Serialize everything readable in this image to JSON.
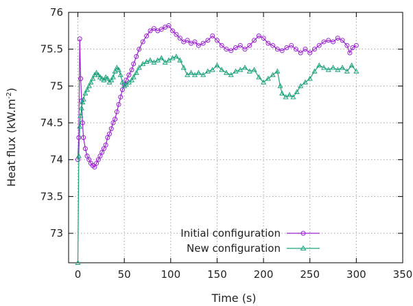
{
  "chart_data": {
    "type": "line",
    "title": "",
    "xlabel": "Time (s)",
    "ylabel": "Heat flux (kW.m",
    "ylabel_sup": "-2",
    "ylabel_close": ")",
    "xlim": [
      -10,
      350
    ],
    "ylim": [
      72.6,
      76
    ],
    "x_ticks": [
      0,
      50,
      100,
      150,
      200,
      250,
      300,
      350
    ],
    "x_tick_labels": [
      "0",
      "50",
      "100",
      "150",
      "200",
      "250",
      "300",
      "350"
    ],
    "y_ticks": [
      73,
      73.5,
      74,
      74.5,
      75,
      75.5,
      76
    ],
    "y_tick_labels": [
      "73",
      "73.5",
      "74",
      "74.5",
      "75",
      "75.5",
      "76"
    ],
    "grid": true,
    "legend_position": "bottom-right",
    "series": [
      {
        "name": "Initial configuration",
        "color": "#9a1fd0",
        "marker": "circle",
        "points": [
          [
            0,
            74.0
          ],
          [
            1,
            74.3
          ],
          [
            2,
            75.64
          ],
          [
            3,
            75.1
          ],
          [
            4,
            74.8
          ],
          [
            5,
            74.5
          ],
          [
            6,
            74.3
          ],
          [
            8,
            74.15
          ],
          [
            10,
            74.05
          ],
          [
            12,
            74.0
          ],
          [
            14,
            73.95
          ],
          [
            16,
            73.92
          ],
          [
            18,
            73.9
          ],
          [
            20,
            73.95
          ],
          [
            22,
            74.0
          ],
          [
            24,
            74.05
          ],
          [
            26,
            74.1
          ],
          [
            28,
            74.15
          ],
          [
            30,
            74.2
          ],
          [
            32,
            74.3
          ],
          [
            34,
            74.35
          ],
          [
            36,
            74.42
          ],
          [
            38,
            74.5
          ],
          [
            40,
            74.55
          ],
          [
            42,
            74.65
          ],
          [
            44,
            74.75
          ],
          [
            46,
            74.85
          ],
          [
            48,
            74.95
          ],
          [
            50,
            75.02
          ],
          [
            52,
            75.08
          ],
          [
            55,
            75.15
          ],
          [
            58,
            75.22
          ],
          [
            60,
            75.3
          ],
          [
            63,
            75.4
          ],
          [
            66,
            75.5
          ],
          [
            70,
            75.6
          ],
          [
            74,
            75.68
          ],
          [
            78,
            75.75
          ],
          [
            82,
            75.78
          ],
          [
            86,
            75.75
          ],
          [
            90,
            75.77
          ],
          [
            94,
            75.8
          ],
          [
            98,
            75.82
          ],
          [
            102,
            75.75
          ],
          [
            106,
            75.7
          ],
          [
            110,
            75.65
          ],
          [
            114,
            75.6
          ],
          [
            118,
            75.62
          ],
          [
            122,
            75.58
          ],
          [
            126,
            75.6
          ],
          [
            130,
            75.55
          ],
          [
            135,
            75.58
          ],
          [
            140,
            75.62
          ],
          [
            145,
            75.68
          ],
          [
            150,
            75.62
          ],
          [
            155,
            75.55
          ],
          [
            160,
            75.5
          ],
          [
            165,
            75.48
          ],
          [
            170,
            75.52
          ],
          [
            175,
            75.55
          ],
          [
            180,
            75.5
          ],
          [
            185,
            75.55
          ],
          [
            190,
            75.62
          ],
          [
            195,
            75.68
          ],
          [
            200,
            75.65
          ],
          [
            205,
            75.58
          ],
          [
            210,
            75.55
          ],
          [
            215,
            75.5
          ],
          [
            220,
            75.48
          ],
          [
            225,
            75.52
          ],
          [
            230,
            75.55
          ],
          [
            235,
            75.5
          ],
          [
            240,
            75.45
          ],
          [
            245,
            75.5
          ],
          [
            250,
            75.45
          ],
          [
            255,
            75.5
          ],
          [
            260,
            75.55
          ],
          [
            265,
            75.6
          ],
          [
            270,
            75.62
          ],
          [
            275,
            75.6
          ],
          [
            280,
            75.65
          ],
          [
            285,
            75.62
          ],
          [
            290,
            75.55
          ],
          [
            293,
            75.45
          ],
          [
            296,
            75.52
          ],
          [
            300,
            75.55
          ]
        ]
      },
      {
        "name": "New configuration",
        "color": "#1aa37a",
        "marker": "triangle",
        "points": [
          [
            0,
            72.6
          ],
          [
            1,
            74.05
          ],
          [
            2,
            74.45
          ],
          [
            3,
            74.6
          ],
          [
            4,
            74.7
          ],
          [
            5,
            74.78
          ],
          [
            6,
            74.82
          ],
          [
            8,
            74.9
          ],
          [
            10,
            74.95
          ],
          [
            12,
            75.0
          ],
          [
            14,
            75.05
          ],
          [
            16,
            75.1
          ],
          [
            18,
            75.15
          ],
          [
            20,
            75.18
          ],
          [
            22,
            75.15
          ],
          [
            24,
            75.12
          ],
          [
            26,
            75.1
          ],
          [
            28,
            75.08
          ],
          [
            30,
            75.12
          ],
          [
            32,
            75.1
          ],
          [
            34,
            75.05
          ],
          [
            36,
            75.08
          ],
          [
            38,
            75.12
          ],
          [
            40,
            75.2
          ],
          [
            42,
            75.25
          ],
          [
            44,
            75.22
          ],
          [
            46,
            75.15
          ],
          [
            48,
            75.05
          ],
          [
            50,
            75.0
          ],
          [
            52,
            75.02
          ],
          [
            55,
            75.05
          ],
          [
            58,
            75.08
          ],
          [
            60,
            75.12
          ],
          [
            63,
            75.18
          ],
          [
            66,
            75.25
          ],
          [
            70,
            75.3
          ],
          [
            74,
            75.33
          ],
          [
            78,
            75.35
          ],
          [
            82,
            75.32
          ],
          [
            86,
            75.35
          ],
          [
            90,
            75.38
          ],
          [
            94,
            75.32
          ],
          [
            98,
            75.35
          ],
          [
            102,
            75.38
          ],
          [
            106,
            75.4
          ],
          [
            110,
            75.35
          ],
          [
            114,
            75.25
          ],
          [
            118,
            75.15
          ],
          [
            122,
            75.18
          ],
          [
            126,
            75.15
          ],
          [
            130,
            75.18
          ],
          [
            135,
            75.15
          ],
          [
            140,
            75.2
          ],
          [
            145,
            75.22
          ],
          [
            150,
            75.28
          ],
          [
            155,
            75.22
          ],
          [
            160,
            75.18
          ],
          [
            165,
            75.15
          ],
          [
            170,
            75.2
          ],
          [
            175,
            75.22
          ],
          [
            180,
            75.25
          ],
          [
            185,
            75.2
          ],
          [
            190,
            75.22
          ],
          [
            195,
            75.12
          ],
          [
            200,
            75.05
          ],
          [
            205,
            75.1
          ],
          [
            210,
            75.15
          ],
          [
            215,
            75.2
          ],
          [
            218,
            75.0
          ],
          [
            220,
            74.9
          ],
          [
            224,
            74.85
          ],
          [
            228,
            74.88
          ],
          [
            232,
            74.85
          ],
          [
            236,
            74.92
          ],
          [
            240,
            75.0
          ],
          [
            245,
            75.05
          ],
          [
            250,
            75.1
          ],
          [
            255,
            75.2
          ],
          [
            260,
            75.28
          ],
          [
            265,
            75.25
          ],
          [
            270,
            75.22
          ],
          [
            275,
            75.25
          ],
          [
            280,
            75.22
          ],
          [
            285,
            75.25
          ],
          [
            290,
            75.2
          ],
          [
            295,
            75.28
          ],
          [
            300,
            75.2
          ]
        ]
      }
    ]
  }
}
